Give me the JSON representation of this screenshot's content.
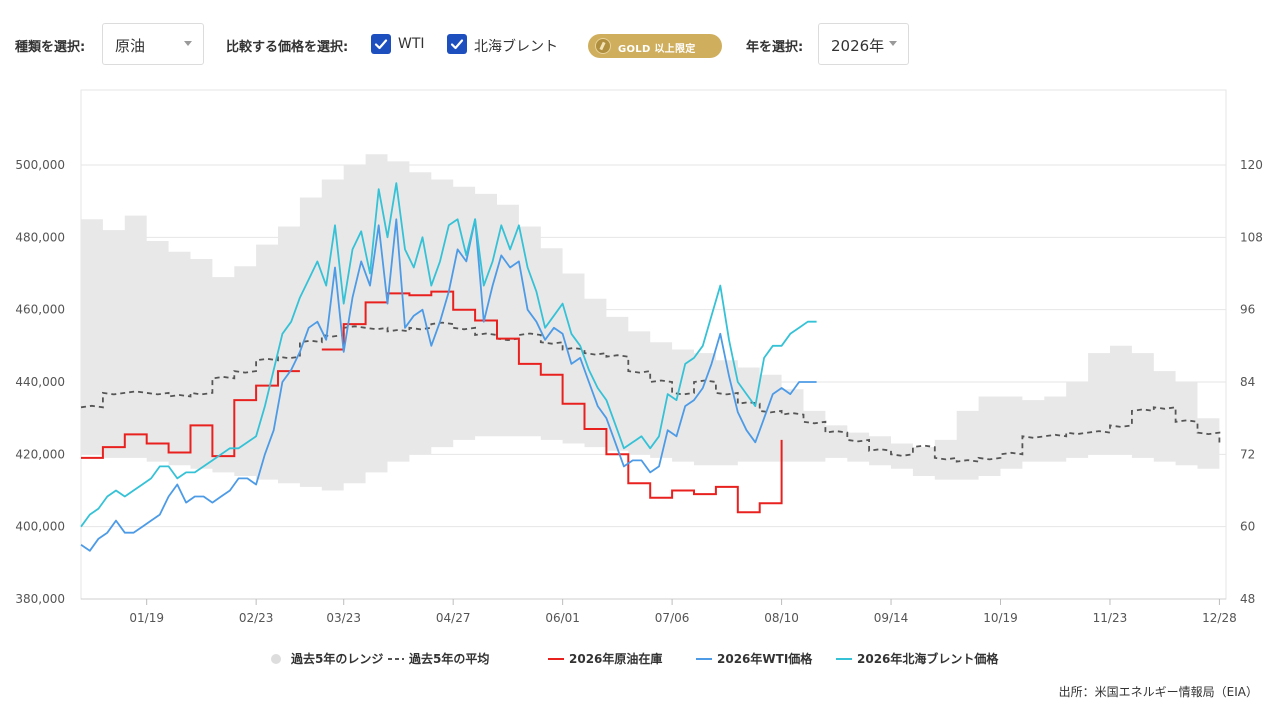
{
  "controls": {
    "type_label": "種類を選択:",
    "type_value": "原油",
    "compare_label": "比較する価格を選択:",
    "checkbox_wti": "WTI",
    "checkbox_brent": "北海ブレント",
    "gold_badge": "GOLD 以上限定",
    "year_label": "年を選択:",
    "year_value": "2026年"
  },
  "source": "出所：米国エネルギー情報局（EIA）",
  "colors": {
    "range_band": "#e8e8e8",
    "avg_line": "#555555",
    "inventory": "#e8211f",
    "wti": "#4d9be6",
    "brent": "#35c2d6",
    "checkbox": "#1e4fbf",
    "gold": "#cfae5e"
  },
  "legend": [
    {
      "label": "過去5年のレンジ",
      "kind": "dot",
      "color": "#dddddd"
    },
    {
      "label": "過去5年の平均",
      "kind": "dash",
      "color": "#555555"
    },
    {
      "label": "2026年原油在庫",
      "kind": "line",
      "color": "#e8211f"
    },
    {
      "label": "2026年WTI価格",
      "kind": "line",
      "color": "#4d9be6"
    },
    {
      "label": "2026年北海ブレント価格",
      "kind": "line",
      "color": "#35c2d6"
    }
  ],
  "chart_data": {
    "type": "line",
    "x_unit": "week",
    "x_tick_labels": [
      "01/19",
      "02/23",
      "03/23",
      "04/27",
      "06/01",
      "07/06",
      "08/10",
      "09/14",
      "10/19",
      "11/23",
      "12/28"
    ],
    "x_tick_weeks": [
      3,
      8,
      12,
      17,
      22,
      27,
      32,
      37,
      42,
      47,
      52
    ],
    "xlim": [
      0,
      52.3
    ],
    "y_left": {
      "min": 380000,
      "max": 500000,
      "ticks": [
        380000,
        400000,
        420000,
        440000,
        460000,
        480000,
        500000
      ]
    },
    "y_right": {
      "min": 48,
      "max": 120,
      "ticks": [
        48,
        60,
        72,
        84,
        96,
        108,
        120
      ]
    },
    "grid": true,
    "legend_position": "bottom",
    "series": [
      {
        "name": "過去5年のレンジ",
        "kind": "band",
        "axis": "left",
        "x": [
          0,
          1,
          2,
          3,
          4,
          5,
          6,
          7,
          8,
          9,
          10,
          11,
          12,
          13,
          14,
          15,
          16,
          17,
          18,
          19,
          20,
          21,
          22,
          23,
          24,
          25,
          26,
          27,
          28,
          29,
          30,
          31,
          32,
          33,
          34,
          35,
          36,
          37,
          38,
          39,
          40,
          41,
          42,
          43,
          44,
          45,
          46,
          47,
          48,
          49,
          50,
          51,
          52
        ],
        "upper": [
          485000,
          482000,
          486000,
          479000,
          476000,
          474000,
          469000,
          472000,
          478000,
          483000,
          491000,
          496000,
          500000,
          503000,
          501000,
          498000,
          496000,
          494000,
          492000,
          489000,
          483000,
          477000,
          470000,
          463000,
          458000,
          454000,
          451000,
          449000,
          448000,
          446000,
          444000,
          442000,
          438000,
          432000,
          428000,
          426000,
          425000,
          423000,
          422000,
          424000,
          432000,
          436000,
          436000,
          435000,
          436000,
          440000,
          448000,
          450000,
          448000,
          443000,
          440000,
          430000,
          431000
        ],
        "lower": [
          420000,
          419000,
          419000,
          418000,
          417000,
          416000,
          415000,
          414000,
          413000,
          412000,
          411000,
          410000,
          412000,
          415000,
          418000,
          420000,
          422000,
          424000,
          425000,
          425000,
          425000,
          424000,
          423000,
          422000,
          421000,
          420000,
          419000,
          418000,
          417000,
          417000,
          418000,
          418000,
          418000,
          418000,
          419000,
          418000,
          417000,
          416000,
          414000,
          413000,
          413000,
          414000,
          416000,
          418000,
          418000,
          419000,
          420000,
          420000,
          419000,
          418000,
          417000,
          416000,
          415000
        ]
      },
      {
        "name": "過去5年の平均",
        "kind": "dashed",
        "axis": "left",
        "x": [
          0,
          1,
          2,
          3,
          4,
          5,
          6,
          7,
          8,
          9,
          10,
          11,
          12,
          13,
          14,
          15,
          16,
          17,
          18,
          19,
          20,
          21,
          22,
          23,
          24,
          25,
          26,
          27,
          28,
          29,
          30,
          31,
          32,
          33,
          34,
          35,
          36,
          37,
          38,
          39,
          40,
          41,
          42,
          43,
          44,
          45,
          46,
          47,
          48,
          49,
          50,
          51,
          52
        ],
        "y": [
          433000,
          437000,
          437000,
          437000,
          436000,
          437000,
          441000,
          443000,
          446000,
          447000,
          451000,
          453000,
          455000,
          455000,
          454000,
          455000,
          456000,
          455000,
          453000,
          452000,
          453000,
          451000,
          449000,
          448000,
          447000,
          443000,
          440000,
          437000,
          440000,
          437000,
          434000,
          432000,
          431000,
          429000,
          426000,
          424000,
          421000,
          420000,
          422000,
          419000,
          418000,
          419000,
          420000,
          425000,
          425000,
          426000,
          426000,
          428000,
          432000,
          433000,
          429000,
          426000,
          423000
        ]
      },
      {
        "name": "2026年原油在庫",
        "kind": "step",
        "axis": "left",
        "x": [
          0,
          1,
          2,
          3,
          4,
          5,
          6,
          7,
          8,
          9,
          10,
          11,
          12,
          13,
          14,
          15,
          16,
          17,
          18,
          19,
          20,
          21,
          22,
          23,
          24,
          25,
          26,
          27,
          28,
          29,
          30,
          31,
          32
        ],
        "y": [
          419000,
          422000,
          425500,
          423000,
          420500,
          428000,
          419500,
          435000,
          439000,
          443000,
          null,
          449000,
          456000,
          462000,
          464500,
          464000,
          465000,
          460000,
          457000,
          452000,
          445000,
          442000,
          434000,
          427000,
          420000,
          412000,
          408000,
          410000,
          409000,
          411000,
          404000,
          406500,
          424000
        ]
      },
      {
        "name": "2026年WTI価格",
        "kind": "line",
        "axis": "right",
        "x": [
          0,
          0.4,
          0.8,
          1.2,
          1.6,
          2.0,
          2.4,
          2.8,
          3.2,
          3.6,
          4.0,
          4.4,
          4.8,
          5.2,
          5.6,
          6.0,
          6.4,
          6.8,
          7.2,
          7.6,
          8.0,
          8.4,
          8.8,
          9.2,
          9.6,
          10.0,
          10.4,
          10.8,
          11.2,
          11.6,
          12.0,
          12.4,
          12.8,
          13.2,
          13.6,
          14.0,
          14.4,
          14.8,
          15.2,
          15.6,
          16.0,
          16.4,
          16.8,
          17.2,
          17.6,
          18.0,
          18.4,
          18.8,
          19.2,
          19.6,
          20.0,
          20.4,
          20.8,
          21.2,
          21.6,
          22.0,
          22.4,
          22.8,
          23.2,
          23.6,
          24.0,
          24.4,
          24.8,
          25.2,
          25.6,
          26.0,
          26.4,
          26.8,
          27.2,
          27.6,
          28.0,
          28.4,
          28.8,
          29.2,
          29.6,
          30.0,
          30.4,
          30.8,
          31.2,
          31.6,
          32.0,
          32.4,
          32.8,
          33.2,
          33.6
        ],
        "y": [
          57,
          56,
          58,
          59,
          61,
          59,
          59,
          60,
          61,
          62,
          65,
          67,
          64,
          65,
          65,
          64,
          65,
          66,
          68,
          68,
          67,
          72,
          76,
          84,
          86,
          89,
          93,
          94,
          91,
          103,
          89,
          98,
          104,
          100,
          110,
          97,
          111,
          93,
          95,
          96,
          90,
          94,
          99,
          106,
          104,
          111,
          94,
          100,
          105,
          103,
          104,
          96,
          94,
          91,
          93,
          92,
          87,
          88,
          84,
          80,
          78,
          74,
          70,
          71,
          71,
          69,
          70,
          76,
          75,
          80,
          81,
          83,
          87,
          92,
          85,
          79,
          76,
          74,
          78,
          82,
          83,
          82,
          84,
          84,
          84
        ]
      },
      {
        "name": "2026年北海ブレント価格",
        "kind": "line",
        "axis": "right",
        "x": [
          0,
          0.4,
          0.8,
          1.2,
          1.6,
          2.0,
          2.4,
          2.8,
          3.2,
          3.6,
          4.0,
          4.4,
          4.8,
          5.2,
          5.6,
          6.0,
          6.4,
          6.8,
          7.2,
          7.6,
          8.0,
          8.4,
          8.8,
          9.2,
          9.6,
          10.0,
          10.4,
          10.8,
          11.2,
          11.6,
          12.0,
          12.4,
          12.8,
          13.2,
          13.6,
          14.0,
          14.4,
          14.8,
          15.2,
          15.6,
          16.0,
          16.4,
          16.8,
          17.2,
          17.6,
          18.0,
          18.4,
          18.8,
          19.2,
          19.6,
          20.0,
          20.4,
          20.8,
          21.2,
          21.6,
          22.0,
          22.4,
          22.8,
          23.2,
          23.6,
          24.0,
          24.4,
          24.8,
          25.2,
          25.6,
          26.0,
          26.4,
          26.8,
          27.2,
          27.6,
          28.0,
          28.4,
          28.8,
          29.2,
          29.6,
          30.0,
          30.4,
          30.8,
          31.2,
          31.6,
          32.0,
          32.4,
          32.8,
          33.2,
          33.6
        ],
        "y": [
          60,
          62,
          63,
          65,
          66,
          65,
          66,
          67,
          68,
          70,
          70,
          68,
          69,
          69,
          70,
          71,
          72,
          73,
          73,
          74,
          75,
          80,
          86,
          92,
          94,
          98,
          101,
          104,
          100,
          110,
          97,
          106,
          109,
          102,
          116,
          108,
          117,
          106,
          103,
          108,
          100,
          104,
          110,
          111,
          105,
          111,
          100,
          104,
          110,
          106,
          110,
          103,
          99,
          93,
          95,
          97,
          92,
          90,
          86,
          83,
          81,
          77,
          73,
          74,
          75,
          73,
          75,
          82,
          81,
          87,
          88,
          90,
          95,
          100,
          91,
          84,
          82,
          80,
          88,
          90,
          90,
          92,
          93,
          94,
          94
        ]
      }
    ]
  }
}
